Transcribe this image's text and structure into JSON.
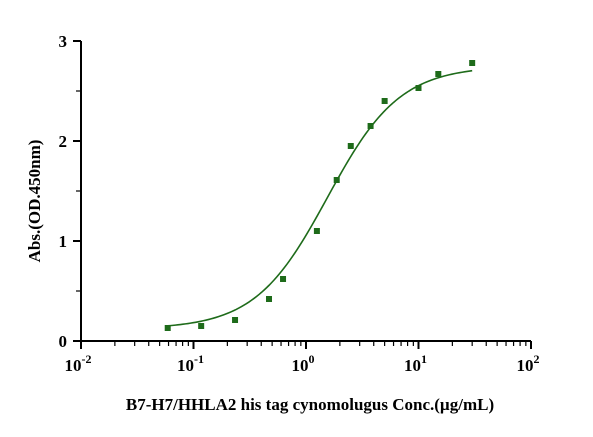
{
  "chart_data": {
    "type": "scatter",
    "title": "",
    "xlabel": "B7-H7/HHLA2 his tag cynomolugus Conc.(µg/mL)",
    "ylabel": "Abs.(OD.450nm)",
    "x_scale": "log10",
    "xlim": [
      0.01,
      100
    ],
    "ylim": [
      0,
      3
    ],
    "x_ticks": [
      {
        "value": 0.01,
        "base": "10",
        "exp": "-2"
      },
      {
        "value": 0.1,
        "base": "10",
        "exp": "-1"
      },
      {
        "value": 1,
        "base": "10",
        "exp": "0"
      },
      {
        "value": 10,
        "base": "10",
        "exp": "1"
      },
      {
        "value": 100,
        "base": "10",
        "exp": "2"
      }
    ],
    "y_ticks": [
      {
        "value": 0,
        "label": "0"
      },
      {
        "value": 1,
        "label": "1"
      },
      {
        "value": 2,
        "label": "2"
      },
      {
        "value": 3,
        "label": "3"
      }
    ],
    "grid": false,
    "legend": "none",
    "series": [
      {
        "color": "#1e6b1a",
        "marker": "square",
        "x": [
          0.059,
          0.117,
          0.234,
          0.469,
          0.625,
          1.25,
          1.875,
          2.5,
          3.75,
          5.0,
          10.0,
          15.0,
          30.0
        ],
        "y": [
          0.13,
          0.15,
          0.21,
          0.42,
          0.62,
          1.1,
          1.61,
          1.95,
          2.15,
          2.4,
          2.53,
          2.67,
          2.78
        ]
      }
    ],
    "fit": {
      "model": "4PL",
      "bottom": 0.12,
      "top": 2.75,
      "ec50": 1.55,
      "hill": 1.35,
      "x_range": [
        0.059,
        30
      ]
    }
  }
}
